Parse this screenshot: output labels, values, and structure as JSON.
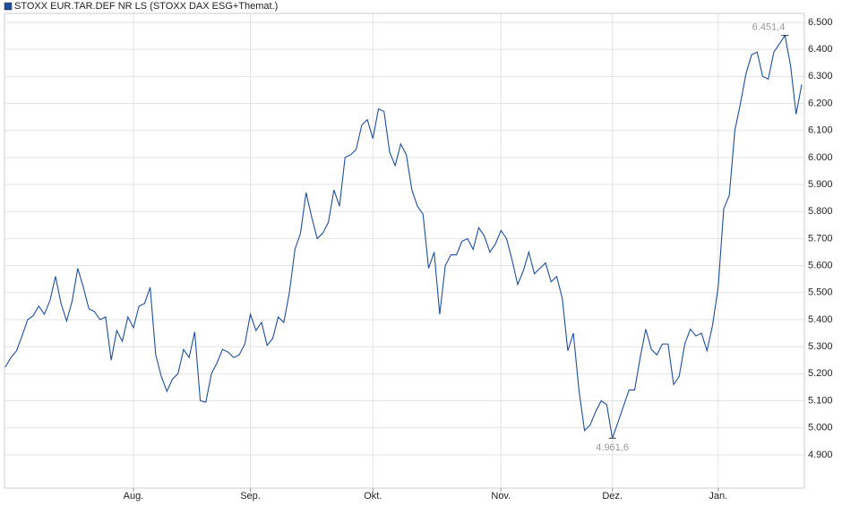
{
  "chart_data": {
    "type": "line",
    "series": [
      {
        "name": "STOXX EUR.TAR.DEF NR LS (STOXX DAX ESG+Themat.)",
        "color": "#1f4e9c",
        "values": [
          5225,
          5260,
          5285,
          5340,
          5400,
          5415,
          5450,
          5420,
          5470,
          5560,
          5460,
          5395,
          5470,
          5590,
          5520,
          5440,
          5430,
          5400,
          5410,
          5250,
          5360,
          5320,
          5410,
          5370,
          5450,
          5460,
          5520,
          5270,
          5190,
          5135,
          5180,
          5200,
          5290,
          5260,
          5355,
          5100,
          5095,
          5200,
          5240,
          5290,
          5280,
          5260,
          5270,
          5310,
          5420,
          5360,
          5390,
          5305,
          5330,
          5410,
          5390,
          5500,
          5660,
          5720,
          5870,
          5780,
          5700,
          5720,
          5760,
          5880,
          5820,
          6000,
          6010,
          6030,
          6120,
          6140,
          6070,
          6180,
          6170,
          6020,
          5970,
          6050,
          6010,
          5880,
          5820,
          5790,
          5590,
          5650,
          5420,
          5600,
          5640,
          5640,
          5690,
          5700,
          5660,
          5740,
          5710,
          5650,
          5680,
          5730,
          5700,
          5620,
          5530,
          5580,
          5650,
          5570,
          5590,
          5610,
          5540,
          5560,
          5480,
          5285,
          5350,
          5140,
          4990,
          5010,
          5060,
          5100,
          5085,
          4961.6,
          5020,
          5080,
          5140,
          5140,
          5260,
          5365,
          5290,
          5270,
          5310,
          5310,
          5160,
          5190,
          5310,
          5365,
          5340,
          5350,
          5285,
          5380,
          5520,
          5810,
          5860,
          6100,
          6200,
          6310,
          6380,
          6390,
          6300,
          6290,
          6390,
          6420,
          6451.4,
          6340,
          6160,
          6270
        ],
        "value_labels": [
          null,
          null,
          null,
          null,
          null,
          null,
          null,
          null,
          null,
          null,
          null,
          null,
          null,
          null,
          null,
          null,
          null,
          null,
          null,
          null,
          null,
          null,
          null,
          null,
          null,
          null,
          null,
          null,
          null,
          null,
          null,
          null,
          null,
          null,
          null,
          null,
          null,
          null,
          null,
          null,
          null,
          null,
          null,
          null,
          null,
          null,
          null,
          null,
          null,
          null,
          null,
          null,
          null,
          null,
          null,
          null,
          null,
          null,
          null,
          null,
          null,
          null,
          null,
          null,
          null,
          null,
          null,
          null,
          null,
          null,
          null,
          null,
          null,
          null,
          null,
          null,
          null,
          null,
          null,
          null,
          null,
          null,
          null,
          null,
          null,
          null,
          null,
          null,
          null,
          null,
          null,
          null,
          null,
          null,
          null,
          null,
          null,
          null,
          null,
          null,
          null,
          null,
          null,
          null,
          null,
          null,
          null,
          null,
          null,
          "4.961,6",
          null,
          null,
          null,
          null,
          null,
          null,
          null,
          null,
          null,
          null,
          null,
          null,
          null,
          null,
          null,
          null,
          null,
          null,
          null,
          null,
          null,
          null,
          null,
          null,
          null,
          null,
          null,
          null,
          null,
          null,
          "6.451,4",
          null,
          null,
          null
        ]
      }
    ],
    "categories": [
      null,
      null,
      null,
      null,
      null,
      null,
      null,
      null,
      null,
      null,
      null,
      null,
      null,
      null,
      null,
      null,
      null,
      null,
      null,
      null,
      null,
      null,
      null,
      "Aug.",
      null,
      null,
      null,
      null,
      null,
      null,
      null,
      null,
      null,
      null,
      null,
      null,
      null,
      null,
      null,
      null,
      null,
      null,
      null,
      null,
      "Sep.",
      null,
      null,
      null,
      null,
      null,
      null,
      null,
      null,
      null,
      null,
      null,
      null,
      null,
      null,
      null,
      null,
      null,
      null,
      null,
      null,
      null,
      "Okt.",
      null,
      null,
      null,
      null,
      null,
      null,
      null,
      null,
      null,
      null,
      null,
      null,
      null,
      null,
      null,
      null,
      null,
      null,
      null,
      null,
      null,
      null,
      "Nov.",
      null,
      null,
      null,
      null,
      null,
      null,
      null,
      null,
      null,
      null,
      null,
      null,
      null,
      null,
      null,
      null,
      null,
      null,
      null,
      "Dez.",
      null,
      null,
      null,
      null,
      null,
      null,
      null,
      null,
      null,
      null,
      null,
      null,
      null,
      null,
      null,
      null,
      null,
      null,
      "Jan.",
      null,
      null,
      null,
      null,
      null,
      null,
      null,
      null,
      null,
      null,
      null,
      null,
      null,
      null,
      null
    ],
    "ylim": [
      4777,
      6533
    ],
    "yticks": [
      {
        "value": 4900,
        "label": "4.900"
      },
      {
        "value": 5000,
        "label": "5.000"
      },
      {
        "value": 5100,
        "label": "5.100"
      },
      {
        "value": 5200,
        "label": "5.200"
      },
      {
        "value": 5300,
        "label": "5.300"
      },
      {
        "value": 5400,
        "label": "5.400"
      },
      {
        "value": 5500,
        "label": "5.500"
      },
      {
        "value": 5600,
        "label": "5.600"
      },
      {
        "value": 5700,
        "label": "5.700"
      },
      {
        "value": 5800,
        "label": "5.800"
      },
      {
        "value": 5900,
        "label": "5.900"
      },
      {
        "value": 6000,
        "label": "6.000"
      },
      {
        "value": 6100,
        "label": "6.100"
      },
      {
        "value": 6200,
        "label": "6.200"
      },
      {
        "value": 6300,
        "label": "6.300"
      },
      {
        "value": 6400,
        "label": "6.400"
      },
      {
        "value": 6500,
        "label": "6.500"
      }
    ],
    "grid": true
  }
}
